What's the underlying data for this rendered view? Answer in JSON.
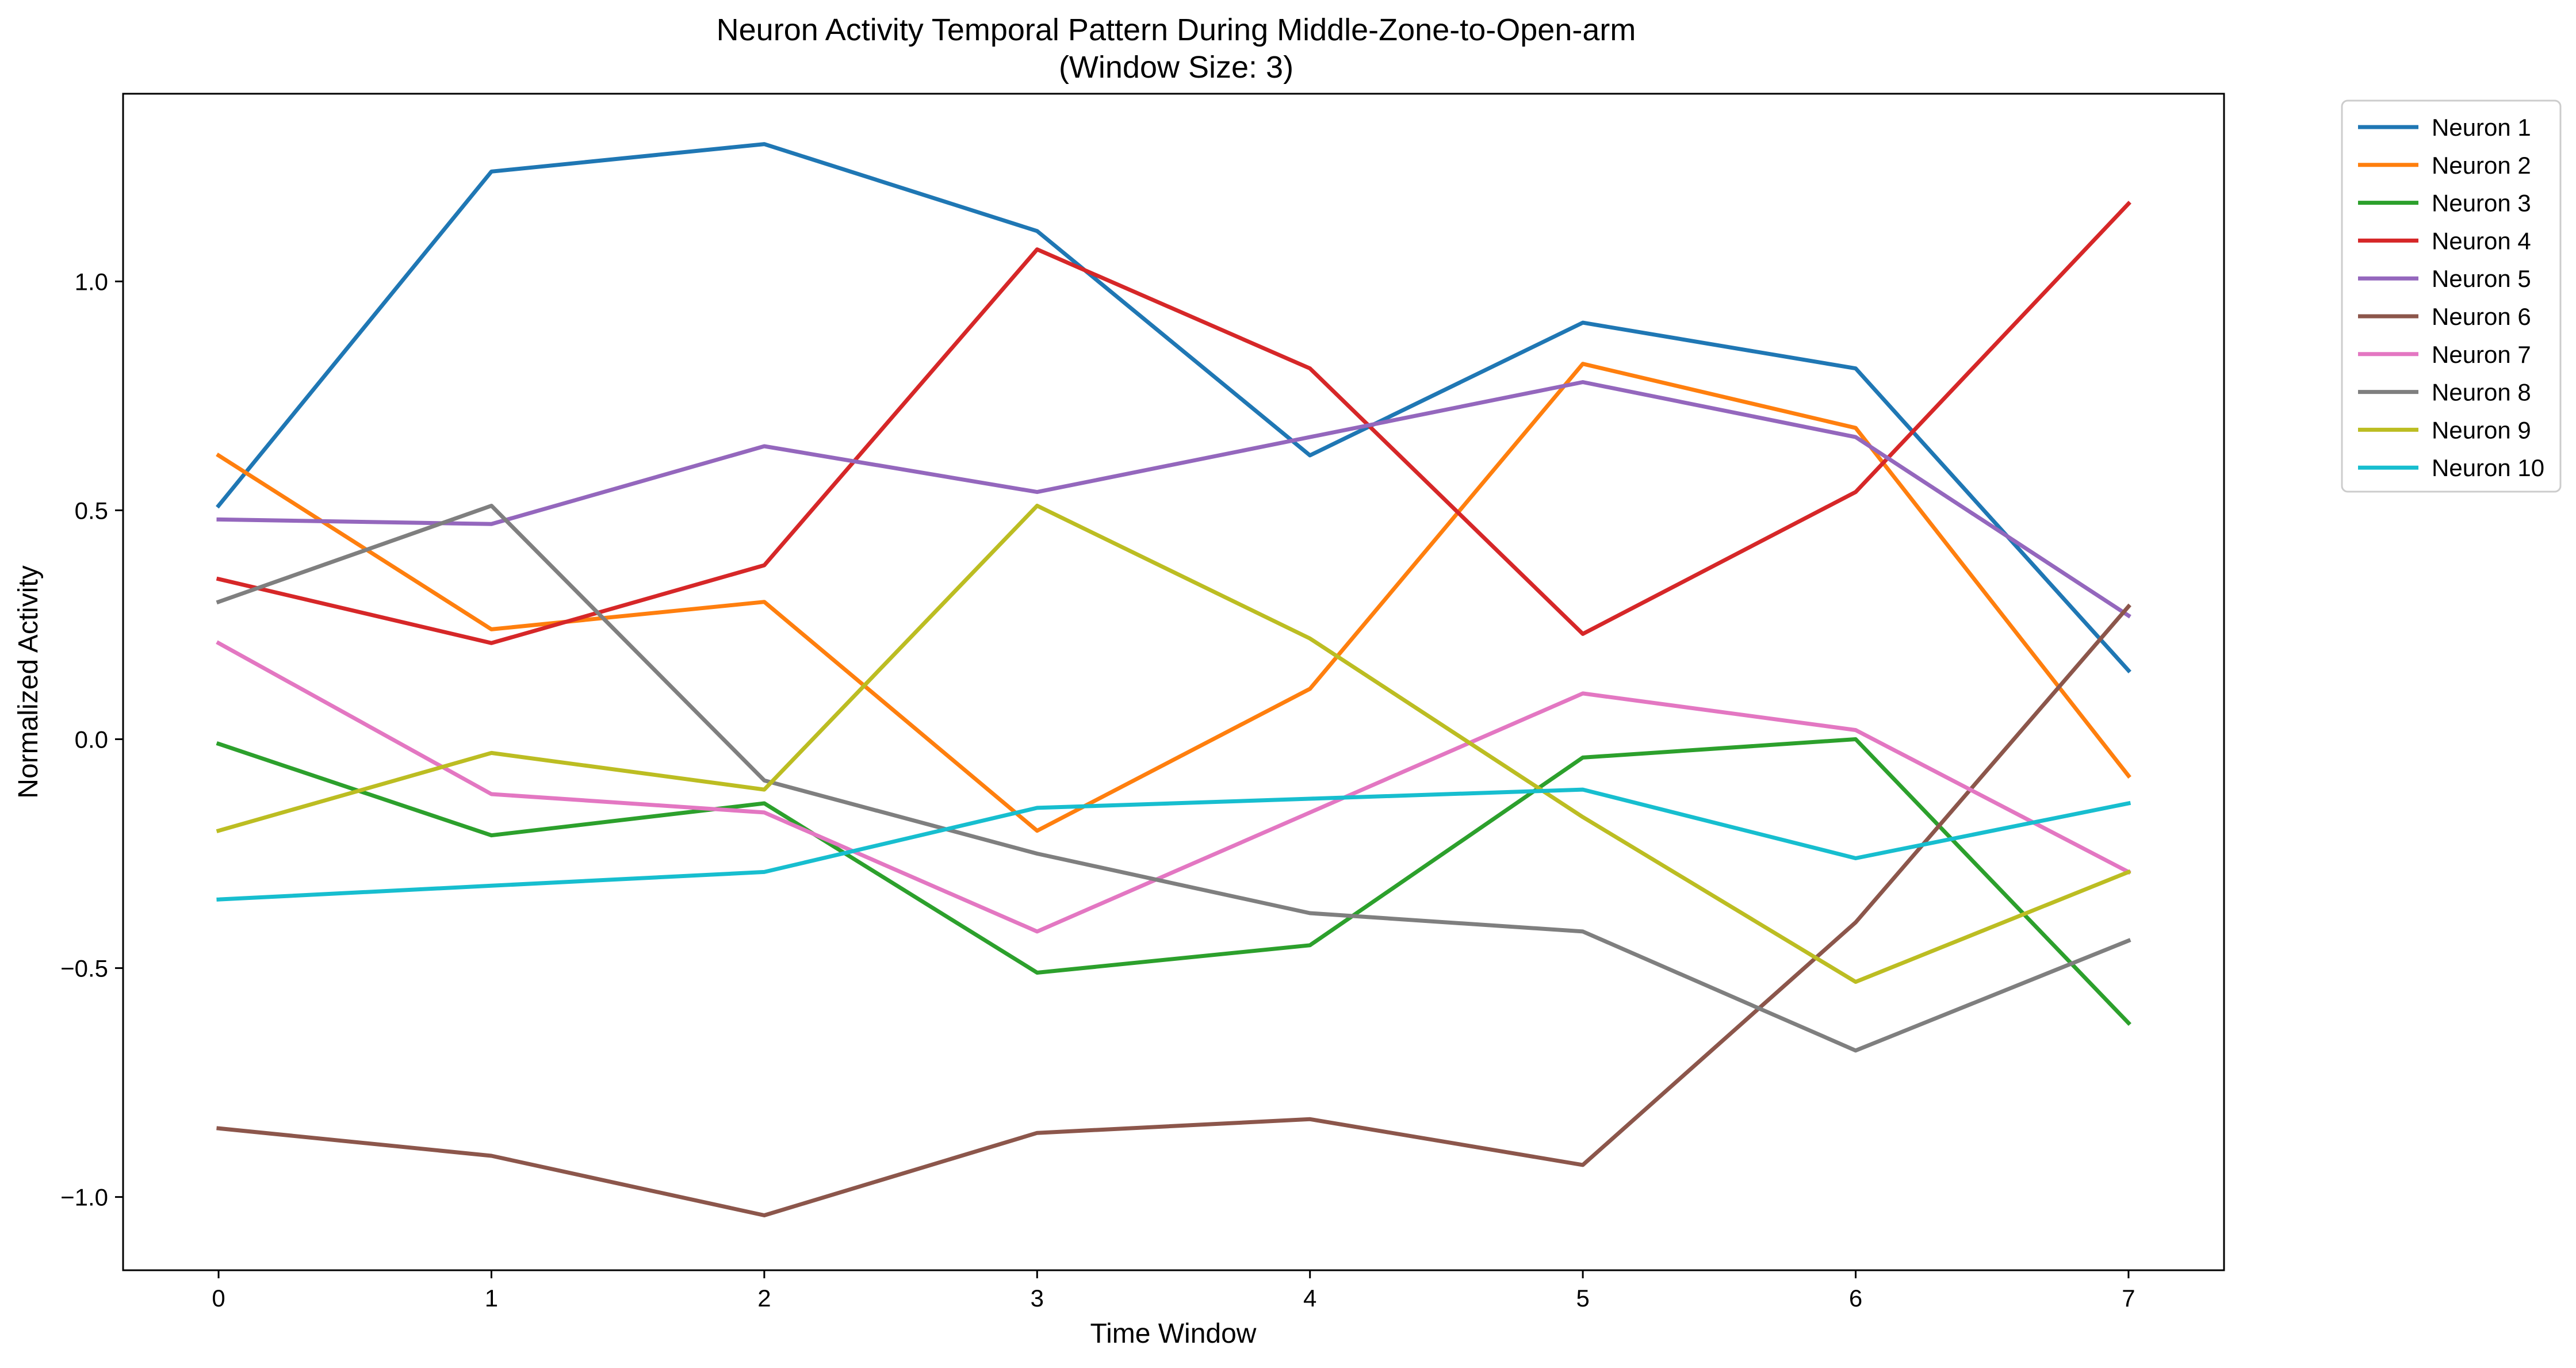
{
  "chart_data": {
    "type": "line",
    "title": "Neuron Activity Temporal Pattern During Middle-Zone-to-Open-arm",
    "subtitle": "(Window Size: 3)",
    "xlabel": "Time Window",
    "ylabel": "Normalized Activity",
    "x": [
      0,
      1,
      2,
      3,
      4,
      5,
      6,
      7
    ],
    "x_ticks": [
      "0",
      "1",
      "2",
      "3",
      "4",
      "5",
      "6",
      "7"
    ],
    "y_ticks": [
      "−1.0",
      "−0.5",
      "0.0",
      "0.5",
      "1.0"
    ],
    "y_tick_values": [
      -1.0,
      -0.5,
      0.0,
      0.5,
      1.0
    ],
    "xlim": [
      -0.35,
      7.35
    ],
    "ylim": [
      -1.16,
      1.41
    ],
    "grid": false,
    "legend_position": "outside-top-right",
    "series": [
      {
        "name": "Neuron 1",
        "color": "#1f77b4",
        "values": [
          0.51,
          1.24,
          1.3,
          1.11,
          0.62,
          0.91,
          0.81,
          0.15
        ]
      },
      {
        "name": "Neuron 2",
        "color": "#ff7f0e",
        "values": [
          0.62,
          0.24,
          0.3,
          -0.2,
          0.11,
          0.82,
          0.68,
          -0.08
        ]
      },
      {
        "name": "Neuron 3",
        "color": "#2ca02c",
        "values": [
          -0.01,
          -0.21,
          -0.14,
          -0.51,
          -0.45,
          -0.04,
          0.0,
          -0.62
        ]
      },
      {
        "name": "Neuron 4",
        "color": "#d62728",
        "values": [
          0.35,
          0.21,
          0.38,
          1.07,
          0.81,
          0.23,
          0.54,
          1.17
        ]
      },
      {
        "name": "Neuron 5",
        "color": "#9467bd",
        "values": [
          0.48,
          0.47,
          0.64,
          0.54,
          0.66,
          0.78,
          0.66,
          0.27
        ]
      },
      {
        "name": "Neuron 6",
        "color": "#8c564b",
        "values": [
          -0.85,
          -0.91,
          -1.04,
          -0.86,
          -0.83,
          -0.93,
          -0.4,
          0.29
        ]
      },
      {
        "name": "Neuron 7",
        "color": "#e377c2",
        "values": [
          0.21,
          -0.12,
          -0.16,
          -0.42,
          -0.16,
          0.1,
          0.02,
          -0.29
        ]
      },
      {
        "name": "Neuron 8",
        "color": "#7f7f7f",
        "values": [
          0.3,
          0.51,
          -0.09,
          -0.25,
          -0.38,
          -0.42,
          -0.68,
          -0.44
        ]
      },
      {
        "name": "Neuron 9",
        "color": "#bcbd22",
        "values": [
          -0.2,
          -0.03,
          -0.11,
          0.51,
          0.22,
          -0.17,
          -0.53,
          -0.29
        ]
      },
      {
        "name": "Neuron 10",
        "color": "#17becf",
        "values": [
          -0.35,
          -0.32,
          -0.29,
          -0.15,
          -0.13,
          -0.11,
          -0.26,
          -0.14
        ]
      }
    ]
  }
}
